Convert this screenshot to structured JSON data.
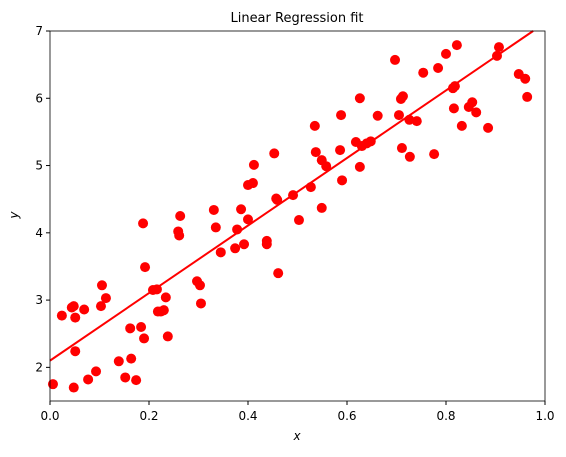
{
  "chart_data": {
    "type": "scatter",
    "title": "Linear Regression fit",
    "x_label": "x",
    "y_label": "y",
    "x": [
      0.006,
      0.024,
      0.044,
      0.048,
      0.051,
      0.051,
      0.048,
      0.069,
      0.077,
      0.093,
      0.103,
      0.105,
      0.113,
      0.139,
      0.152,
      0.162,
      0.164,
      0.174,
      0.184,
      0.188,
      0.19,
      0.192,
      0.208,
      0.216,
      0.218,
      0.224,
      0.23,
      0.234,
      0.238,
      0.259,
      0.261,
      0.263,
      0.297,
      0.303,
      0.305,
      0.331,
      0.335,
      0.345,
      0.374,
      0.378,
      0.386,
      0.392,
      0.4,
      0.4,
      0.41,
      0.412,
      0.438,
      0.438,
      0.453,
      0.457,
      0.459,
      0.461,
      0.491,
      0.503,
      0.527,
      0.535,
      0.537,
      0.549,
      0.549,
      0.558,
      0.586,
      0.588,
      0.59,
      0.618,
      0.626,
      0.626,
      0.63,
      0.64,
      0.648,
      0.662,
      0.697,
      0.705,
      0.709,
      0.713,
      0.711,
      0.726,
      0.727,
      0.741,
      0.754,
      0.776,
      0.784,
      0.8,
      0.814,
      0.816,
      0.818,
      0.822,
      0.832,
      0.846,
      0.853,
      0.861,
      0.885,
      0.903,
      0.907,
      0.947,
      0.96,
      0.964
    ],
    "values": [
      1.75,
      2.77,
      2.89,
      2.91,
      2.74,
      2.24,
      1.7,
      2.86,
      1.82,
      1.94,
      2.91,
      3.22,
      3.03,
      2.09,
      1.85,
      2.58,
      2.13,
      1.81,
      2.6,
      4.14,
      2.43,
      3.49,
      3.15,
      3.16,
      2.83,
      2.83,
      2.85,
      3.04,
      2.46,
      4.02,
      3.96,
      4.25,
      3.28,
      3.22,
      2.95,
      4.34,
      4.08,
      3.71,
      3.77,
      4.05,
      4.35,
      3.83,
      4.2,
      4.71,
      4.74,
      5.01,
      3.88,
      3.83,
      5.18,
      4.51,
      4.49,
      3.4,
      4.56,
      4.19,
      4.68,
      5.59,
      5.2,
      5.08,
      4.37,
      4.99,
      5.23,
      5.75,
      4.78,
      5.35,
      6.0,
      4.98,
      5.29,
      5.33,
      5.36,
      5.74,
      6.57,
      5.75,
      5.99,
      6.03,
      5.26,
      5.68,
      5.13,
      5.66,
      6.38,
      5.17,
      6.45,
      6.66,
      6.15,
      5.85,
      6.18,
      6.79,
      5.59,
      5.87,
      5.94,
      5.79,
      5.56,
      6.63,
      6.76,
      6.36,
      6.29,
      6.02
    ],
    "color": "#ff0000",
    "fit": {
      "type": "line",
      "x": [
        0.0,
        0.976
      ],
      "values": [
        2.1,
        7.0
      ],
      "color": "#ff0000"
    },
    "xlim": [
      0,
      1
    ],
    "ylim": [
      1.5,
      7
    ],
    "xticks": [
      {
        "value": 0,
        "label": "0.0"
      },
      0.2,
      0.4,
      0.6,
      0.8,
      {
        "value": 1,
        "label": "1.0"
      }
    ],
    "yticks": [
      2,
      3,
      4,
      5,
      6,
      7
    ]
  }
}
